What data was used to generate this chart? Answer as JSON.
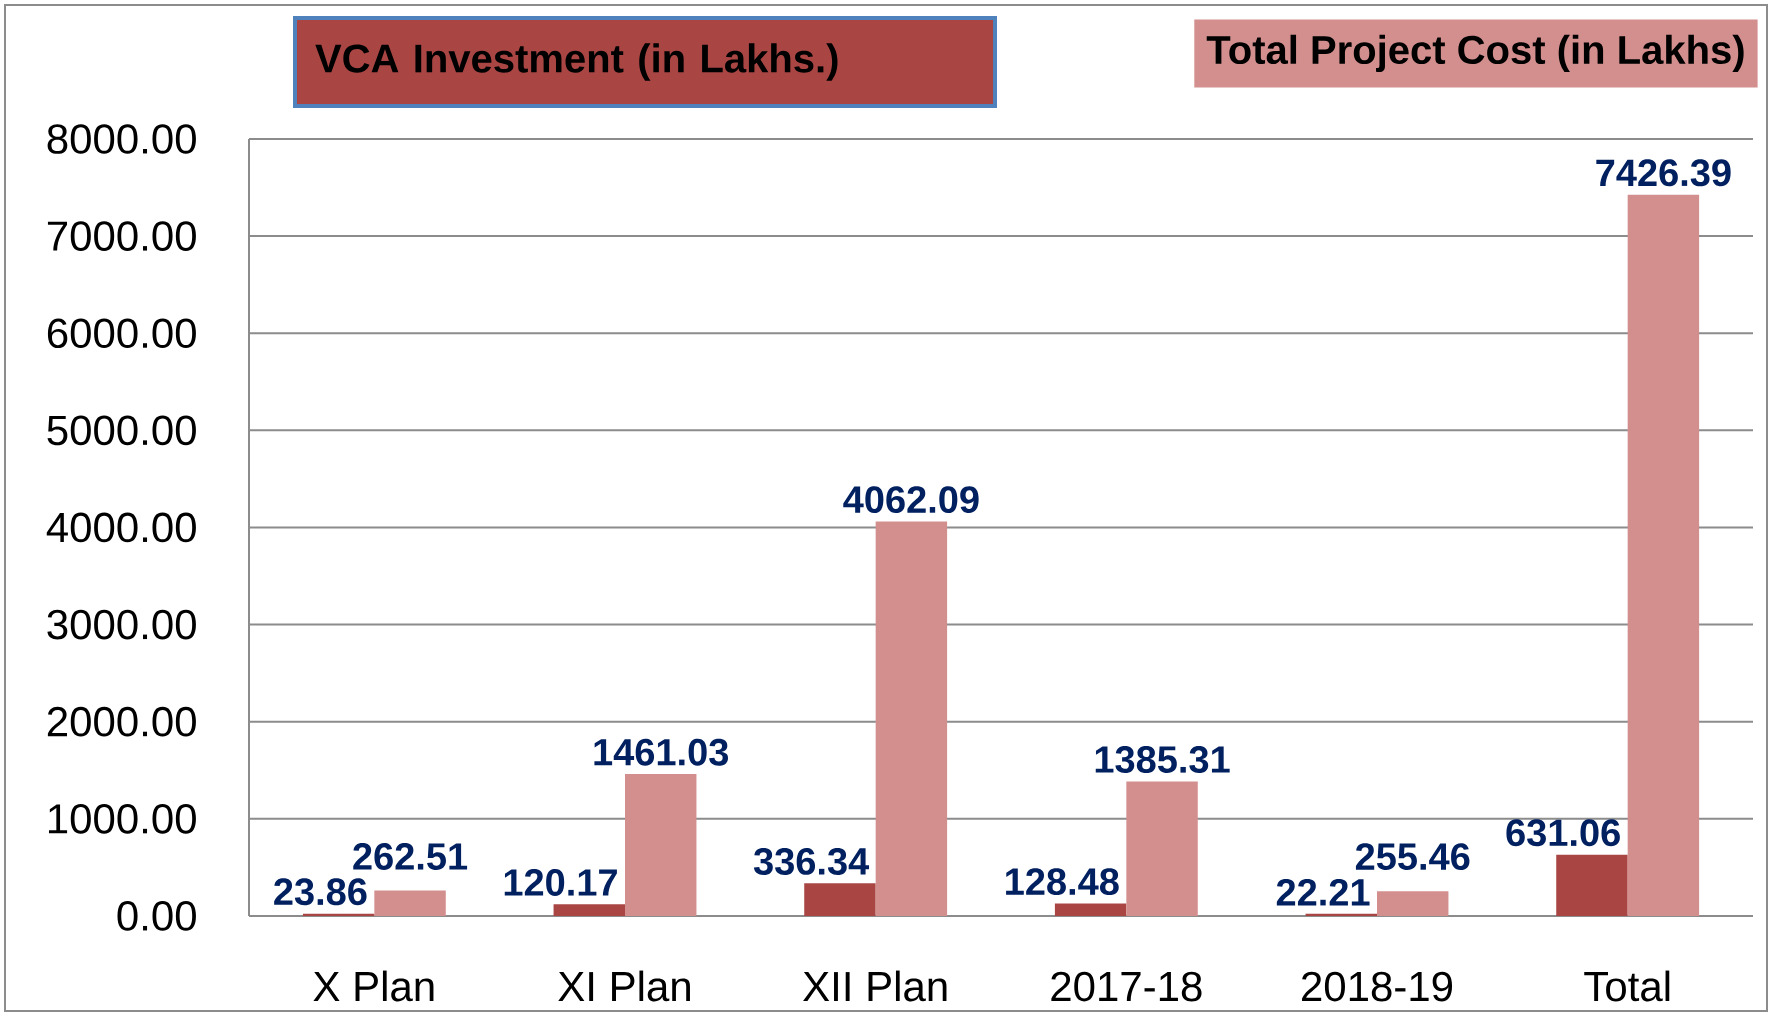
{
  "chart_data": {
    "type": "bar",
    "categories": [
      "X Plan",
      "XI Plan",
      "XII Plan",
      "2017-18",
      "2018-19",
      "Total"
    ],
    "series": [
      {
        "name": "VCA Investment (in  Lakhs.)",
        "color": "#a94644",
        "values": [
          23.86,
          120.17,
          336.34,
          128.48,
          22.21,
          631.06
        ]
      },
      {
        "name": "Total Project Cost (in Lakhs)",
        "color": "#d38f8e",
        "values": [
          262.51,
          1461.03,
          4062.09,
          1385.31,
          255.46,
          7426.39
        ]
      }
    ],
    "ylim": [
      0,
      8000
    ],
    "yticks": [
      {
        "value": 0,
        "label": "0.00"
      },
      {
        "value": 1000,
        "label": "1000.00"
      },
      {
        "value": 2000,
        "label": "2000.00"
      },
      {
        "value": 3000,
        "label": "3000.00"
      },
      {
        "value": 4000,
        "label": "4000.00"
      },
      {
        "value": 5000,
        "label": "5000.00"
      },
      {
        "value": 6000,
        "label": "6000.00"
      },
      {
        "value": 7000,
        "label": "7000.00"
      },
      {
        "value": 8000,
        "label": "8000.00"
      }
    ],
    "grid": "y",
    "legend": "top",
    "data_labels": true
  }
}
